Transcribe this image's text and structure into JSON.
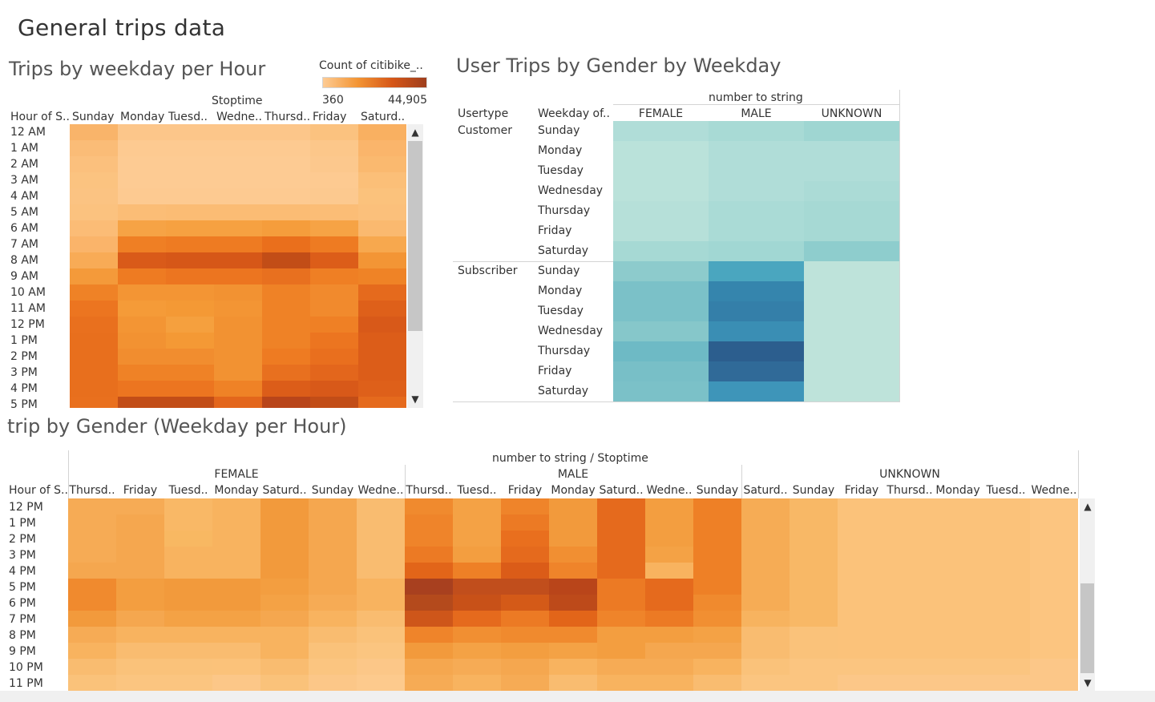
{
  "dashboard_title": "General trips data",
  "sheet1": {
    "title": "Trips by weekday per Hour",
    "legend": {
      "title": "Count of citibike_..",
      "min": "360",
      "max": "44,905"
    },
    "column_group_header": "Stoptime",
    "row_header": "Hour of S..",
    "columns": [
      "Sunday",
      "Monday",
      "Tuesd..",
      "Wedne..",
      "Thursd..",
      "Friday",
      "Saturd.."
    ],
    "rows": [
      "12 AM",
      "1 AM",
      "2 AM",
      "3 AM",
      "4 AM",
      "5 AM",
      "6 AM",
      "7 AM",
      "8 AM",
      "9 AM",
      "10 AM",
      "11 AM",
      "12 PM",
      "1 PM",
      "2 PM",
      "3 PM",
      "4 PM",
      "5 PM"
    ],
    "cell_colors": [
      [
        "#f9b46a",
        "#fcc68a",
        "#fcc68a",
        "#fcc68a",
        "#fcc68a",
        "#fbc27f",
        "#f9b061"
      ],
      [
        "#fabc77",
        "#fdca91",
        "#fdca91",
        "#fdca91",
        "#fdca91",
        "#fcc78a",
        "#fab56b"
      ],
      [
        "#fbc07d",
        "#fdcb93",
        "#fdcb93",
        "#fdcb93",
        "#fdcb93",
        "#fcc88d",
        "#fab96f"
      ],
      [
        "#fbc380",
        "#fdcb93",
        "#fdcb93",
        "#fdcb93",
        "#fdcb93",
        "#fdca91",
        "#fbbf78"
      ],
      [
        "#fbc382",
        "#fdca91",
        "#fdca91",
        "#fdca91",
        "#fdca91",
        "#fcc98f",
        "#fbc27c"
      ],
      [
        "#fbc27f",
        "#fbbd76",
        "#fbbc74",
        "#fbbc74",
        "#fbbc74",
        "#fbbd76",
        "#fbc07b"
      ],
      [
        "#fbbc76",
        "#f6a345",
        "#f6a141",
        "#f6a141",
        "#f59d3c",
        "#f6a345",
        "#fab96f"
      ],
      [
        "#fab46a",
        "#ef7f24",
        "#ee7b22",
        "#ee7b22",
        "#ea6f1c",
        "#ee7b22",
        "#f7a84e"
      ],
      [
        "#f8ab56",
        "#d95a19",
        "#d65718",
        "#d65718",
        "#c24d17",
        "#dc5d19",
        "#f39535"
      ],
      [
        "#f49a3a",
        "#ee7b22",
        "#ec7520",
        "#ec7520",
        "#e8701f",
        "#ef7f24",
        "#ef8326"
      ],
      [
        "#ef8226",
        "#f39534",
        "#f39534",
        "#f29232",
        "#ef8226",
        "#f18a2d",
        "#e56a1d"
      ],
      [
        "#ec7520",
        "#f59b38",
        "#f49935",
        "#f39534",
        "#ef8226",
        "#f18a2d",
        "#de601a"
      ],
      [
        "#e9701e",
        "#f39534",
        "#f5a03e",
        "#f29232",
        "#ef8226",
        "#ef8025",
        "#d85919"
      ],
      [
        "#e86f1d",
        "#f29232",
        "#f49935",
        "#f29232",
        "#ef8226",
        "#ec7520",
        "#dc5d19"
      ],
      [
        "#e86f1d",
        "#f18d2f",
        "#f18d2f",
        "#f29232",
        "#ee7b22",
        "#e96f1e",
        "#dc5d19"
      ],
      [
        "#e86f1d",
        "#ef8226",
        "#ef8226",
        "#f29232",
        "#e8701f",
        "#e3661c",
        "#dc5d19"
      ],
      [
        "#e86f1d",
        "#ec7520",
        "#ec7520",
        "#ef8226",
        "#dc5d19",
        "#d85919",
        "#de601a"
      ],
      [
        "#e9701e",
        "#c24d17",
        "#c24d17",
        "#e3661c",
        "#b9451a",
        "#c24d17",
        "#e56a1d"
      ]
    ]
  },
  "sheet2": {
    "title": "User Trips by Gender by Weekday",
    "column_group_header": "number to string",
    "row_header_usertype": "Usertype",
    "row_header_weekday": "Weekday of..",
    "columns": [
      "FEMALE",
      "MALE",
      "UNKNOWN"
    ],
    "groups": [
      {
        "name": "Customer",
        "days": [
          "Sunday",
          "Monday",
          "Tuesday",
          "Wednesday",
          "Thursday",
          "Friday",
          "Saturday"
        ],
        "cell_colors": [
          [
            "#b0ddd8",
            "#a8dad5",
            "#9fd6d2"
          ],
          [
            "#bae2da",
            "#b0ddd8",
            "#b0ddd8"
          ],
          [
            "#bae2da",
            "#b0ddd8",
            "#b0ddd8"
          ],
          [
            "#bae2da",
            "#b0ddd8",
            "#abdbd6"
          ],
          [
            "#b6e0d9",
            "#aadbd6",
            "#a6d9d4"
          ],
          [
            "#b6e0d9",
            "#aadbd6",
            "#a6d9d4"
          ],
          [
            "#a6d9d4",
            "#a1d7d3",
            "#8ecdcd"
          ]
        ]
      },
      {
        "name": "Subscriber",
        "days": [
          "Sunday",
          "Monday",
          "Tuesday",
          "Wednesday",
          "Thursday",
          "Friday",
          "Saturday"
        ],
        "cell_colors": [
          [
            "#8dcbcc",
            "#4aa6bf",
            "#bee3da"
          ],
          [
            "#7bc1c8",
            "#3585ad",
            "#bee3da"
          ],
          [
            "#7bc1c8",
            "#347fa9",
            "#bee3da"
          ],
          [
            "#86c7ca",
            "#3a8eb4",
            "#bee3da"
          ],
          [
            "#6ebac5",
            "#2c5e8e",
            "#bee3da"
          ],
          [
            "#78bfc7",
            "#306a98",
            "#bee3da"
          ],
          [
            "#7bc1c8",
            "#3e95b9",
            "#bee3da"
          ]
        ]
      }
    ]
  },
  "sheet3": {
    "title": "trip by Gender (Weekday per Hour)",
    "column_group_header": "number to string  /  Stoptime",
    "row_header": "Hour of S..",
    "groups": [
      {
        "name": "FEMALE",
        "days": [
          "Thursd..",
          "Friday",
          "Tuesd..",
          "Monday",
          "Saturd..",
          "Sunday",
          "Wedne.."
        ]
      },
      {
        "name": "MALE",
        "days": [
          "Thursd..",
          "Tuesd..",
          "Friday",
          "Monday",
          "Saturd..",
          "Wedne..",
          "Sunday"
        ]
      },
      {
        "name": "UNKNOWN",
        "days": [
          "Saturd..",
          "Sunday",
          "Friday",
          "Thursd..",
          "Monday",
          "Tuesd..",
          "Wedne.."
        ]
      }
    ],
    "rows": [
      "12 PM",
      "1 PM",
      "2 PM",
      "3 PM",
      "4 PM",
      "5 PM",
      "6 PM",
      "7 PM",
      "8 PM",
      "9 PM",
      "10 PM",
      "11 PM"
    ],
    "cell_colors": [
      [
        "#f6ab55",
        "#f6ab55",
        "#f9b866",
        "#f8b35f",
        "#f29a3c",
        "#f5a74f",
        "#f9bc70",
        "#f08a2e",
        "#f4a245",
        "#ef842a",
        "#f29a3c",
        "#e56a1d",
        "#f39e40",
        "#ee8026",
        "#f6ac55",
        "#f8b866",
        "#fbc27a",
        "#fbc27a",
        "#fbc27a",
        "#fbc27a",
        "#fcc580"
      ],
      [
        "#f6ab55",
        "#f5a74f",
        "#f9b866",
        "#f8b35f",
        "#f29a3c",
        "#f5a74f",
        "#f9bc70",
        "#ef842a",
        "#f4a245",
        "#ec7a24",
        "#f29a3c",
        "#e56a1d",
        "#f39e40",
        "#ee8026",
        "#f6ac55",
        "#f8b866",
        "#fbc27a",
        "#fbc27a",
        "#fbc27a",
        "#fbc27a",
        "#fcc580"
      ],
      [
        "#f6ab55",
        "#f5a74f",
        "#f8b862",
        "#f8b35f",
        "#f29a3c",
        "#f5a74f",
        "#f9bc70",
        "#ef842a",
        "#f4a245",
        "#e96f1e",
        "#f29a3c",
        "#e56a1d",
        "#f39e40",
        "#ee8026",
        "#f6ac55",
        "#f8b866",
        "#fbc27a",
        "#fbc27a",
        "#fbc27a",
        "#fbc27a",
        "#fcc580"
      ],
      [
        "#f6ab55",
        "#f5a74f",
        "#f8b35f",
        "#f8b35f",
        "#f29a3c",
        "#f5a74f",
        "#f9bc70",
        "#ec7a24",
        "#f39e40",
        "#e56a1d",
        "#f18f32",
        "#e56a1d",
        "#f4a245",
        "#ee8026",
        "#f6ac55",
        "#f8b866",
        "#fbc27a",
        "#fbc27a",
        "#fbc27a",
        "#fbc27a",
        "#fcc580"
      ],
      [
        "#f5a74f",
        "#f5a74f",
        "#f8b35f",
        "#f8b35f",
        "#f29a3c",
        "#f5a74f",
        "#f9bc70",
        "#e26519",
        "#ee8026",
        "#db5c18",
        "#ef842a",
        "#e56a1d",
        "#f8b35f",
        "#ee8026",
        "#f6ac55",
        "#f8b866",
        "#fbc27a",
        "#fbc27a",
        "#fbc27a",
        "#fbc27a",
        "#fcc580"
      ],
      [
        "#f08a2e",
        "#f39e40",
        "#f29a3c",
        "#f29a3c",
        "#f39e40",
        "#f5a74f",
        "#f8b35f",
        "#a8401f",
        "#c14e1c",
        "#c14e1c",
        "#b9451a",
        "#ec7a24",
        "#e56a1d",
        "#ee8026",
        "#f6ac55",
        "#f8b866",
        "#fbc27a",
        "#fbc27a",
        "#fbc27a",
        "#fbc27a",
        "#fcc580"
      ],
      [
        "#f08a2e",
        "#f39e40",
        "#f29a3c",
        "#f29a3c",
        "#f4a245",
        "#f6ab55",
        "#f8b35f",
        "#b44a1c",
        "#c85118",
        "#d45a18",
        "#bd4a1a",
        "#ec7a24",
        "#e56a1d",
        "#f08a2e",
        "#f6ac55",
        "#f8b866",
        "#fbc27a",
        "#fbc27a",
        "#fbc27a",
        "#fbc27a",
        "#fcc580"
      ],
      [
        "#f29a3c",
        "#f5a74f",
        "#f4a245",
        "#f4a245",
        "#f5a74f",
        "#f8b35f",
        "#f9bc70",
        "#ce561a",
        "#e56a1d",
        "#ec7a24",
        "#e26519",
        "#ef842a",
        "#ec7a24",
        "#f18f32",
        "#f7b35f",
        "#f8b866",
        "#fbc27a",
        "#fbc27a",
        "#fbc27a",
        "#fbc27a",
        "#fcc580"
      ],
      [
        "#f6ab55",
        "#f8b35f",
        "#f8b35f",
        "#f8b35f",
        "#f8b35f",
        "#f9bc70",
        "#fac27a",
        "#ef842a",
        "#f18f32",
        "#f08a2e",
        "#f08a2e",
        "#f39e40",
        "#f39e40",
        "#f4a245",
        "#f9bc70",
        "#fac27a",
        "#fbc27a",
        "#fbc27a",
        "#fbc27a",
        "#fbc27a",
        "#fcc580"
      ],
      [
        "#f8b35f",
        "#f9bc70",
        "#f9bc70",
        "#f9bc70",
        "#f8b35f",
        "#fac27a",
        "#fbc580",
        "#f29a3c",
        "#f4a245",
        "#f39e40",
        "#f4a245",
        "#f39e40",
        "#f5a74f",
        "#f5a74f",
        "#f9bc70",
        "#fac27a",
        "#fbc27a",
        "#fbc27a",
        "#fbc27a",
        "#fbc27a",
        "#fcc580"
      ],
      [
        "#f9bc70",
        "#fac27a",
        "#fac27a",
        "#fbc27a",
        "#f9bc70",
        "#fbc580",
        "#fcc788",
        "#f5a74f",
        "#f6ab55",
        "#f5a74f",
        "#f8b35f",
        "#f6ab55",
        "#f6ab55",
        "#f8b35f",
        "#fac27a",
        "#fbc580",
        "#fbc580",
        "#fbc580",
        "#fbc580",
        "#fbc580",
        "#fcc788"
      ],
      [
        "#fac27a",
        "#fbc580",
        "#fbc580",
        "#fcc788",
        "#fac27a",
        "#fcc788",
        "#fdca8d",
        "#f6ab55",
        "#f8b35f",
        "#f6ab55",
        "#f9bc70",
        "#f8b35f",
        "#f8b35f",
        "#f9bc70",
        "#fbc580",
        "#fbc580",
        "#fcc788",
        "#fcc788",
        "#fcc788",
        "#fcc788",
        "#fcc788"
      ]
    ]
  }
}
